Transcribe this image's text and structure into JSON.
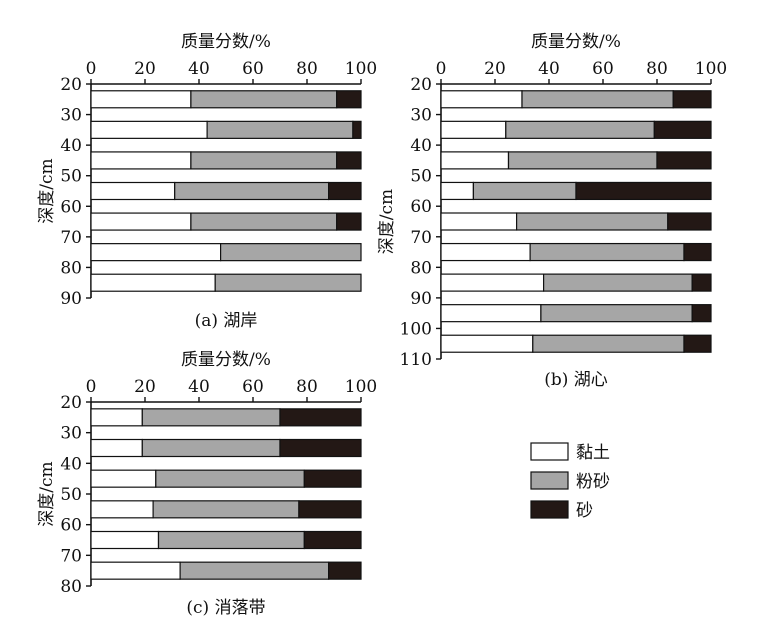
{
  "colors": {
    "clay": "#ffffff",
    "silt": "#a6a6a6",
    "sand": "#231815",
    "stroke": "#111111"
  },
  "legend": [
    {
      "key": "clay",
      "label": "黏土"
    },
    {
      "key": "silt",
      "label": "粉砂"
    },
    {
      "key": "sand",
      "label": "砂"
    }
  ],
  "chart_data": [
    {
      "type": "bar",
      "stacked": true,
      "orientation": "horizontal",
      "title": "(a) 湖岸",
      "xlabel": "质量分数/%",
      "ylabel": "深度/cm",
      "xlim": [
        0,
        100
      ],
      "xticks": [
        "0",
        "20",
        "40",
        "60",
        "80",
        "100"
      ],
      "ylim": [
        20,
        90
      ],
      "yticks": [
        "20",
        "30",
        "40",
        "50",
        "60",
        "70",
        "80",
        "90"
      ],
      "y": [
        25,
        35,
        45,
        55,
        65,
        75,
        85
      ],
      "series": [
        {
          "name": "黏土",
          "values": [
            37,
            43,
            37,
            31,
            37,
            48,
            46
          ]
        },
        {
          "name": "粉砂",
          "values": [
            54,
            54,
            54,
            57,
            54,
            52,
            54
          ]
        },
        {
          "name": "砂",
          "values": [
            9,
            3,
            9,
            12,
            9,
            0,
            0
          ]
        }
      ]
    },
    {
      "type": "bar",
      "stacked": true,
      "orientation": "horizontal",
      "title": "(b) 湖心",
      "xlabel": "质量分数/%",
      "ylabel": "深度/cm",
      "xlim": [
        0,
        100
      ],
      "xticks": [
        "0",
        "20",
        "40",
        "60",
        "80",
        "100"
      ],
      "ylim": [
        20,
        110
      ],
      "yticks": [
        "20",
        "30",
        "40",
        "50",
        "60",
        "70",
        "80",
        "90",
        "100",
        "110"
      ],
      "y": [
        25,
        35,
        45,
        55,
        65,
        75,
        85,
        95,
        105
      ],
      "series": [
        {
          "name": "黏土",
          "values": [
            30,
            24,
            25,
            12,
            28,
            33,
            38,
            37,
            34
          ]
        },
        {
          "name": "粉砂",
          "values": [
            56,
            55,
            55,
            38,
            56,
            57,
            55,
            56,
            56
          ]
        },
        {
          "name": "砂",
          "values": [
            14,
            21,
            20,
            50,
            16,
            10,
            7,
            7,
            10
          ]
        }
      ]
    },
    {
      "type": "bar",
      "stacked": true,
      "orientation": "horizontal",
      "title": "(c) 消落带",
      "xlabel": "质量分数/%",
      "ylabel": "深度/cm",
      "xlim": [
        0,
        100
      ],
      "xticks": [
        "0",
        "20",
        "40",
        "60",
        "80",
        "100"
      ],
      "ylim": [
        20,
        80
      ],
      "yticks": [
        "20",
        "30",
        "40",
        "50",
        "60",
        "70",
        "80"
      ],
      "y": [
        25,
        35,
        45,
        55,
        65,
        75
      ],
      "series": [
        {
          "name": "黏土",
          "values": [
            19,
            19,
            24,
            23,
            25,
            33
          ]
        },
        {
          "name": "粉砂",
          "values": [
            51,
            51,
            55,
            54,
            54,
            55
          ]
        },
        {
          "name": "砂",
          "values": [
            30,
            30,
            21,
            23,
            21,
            12
          ]
        }
      ]
    }
  ]
}
